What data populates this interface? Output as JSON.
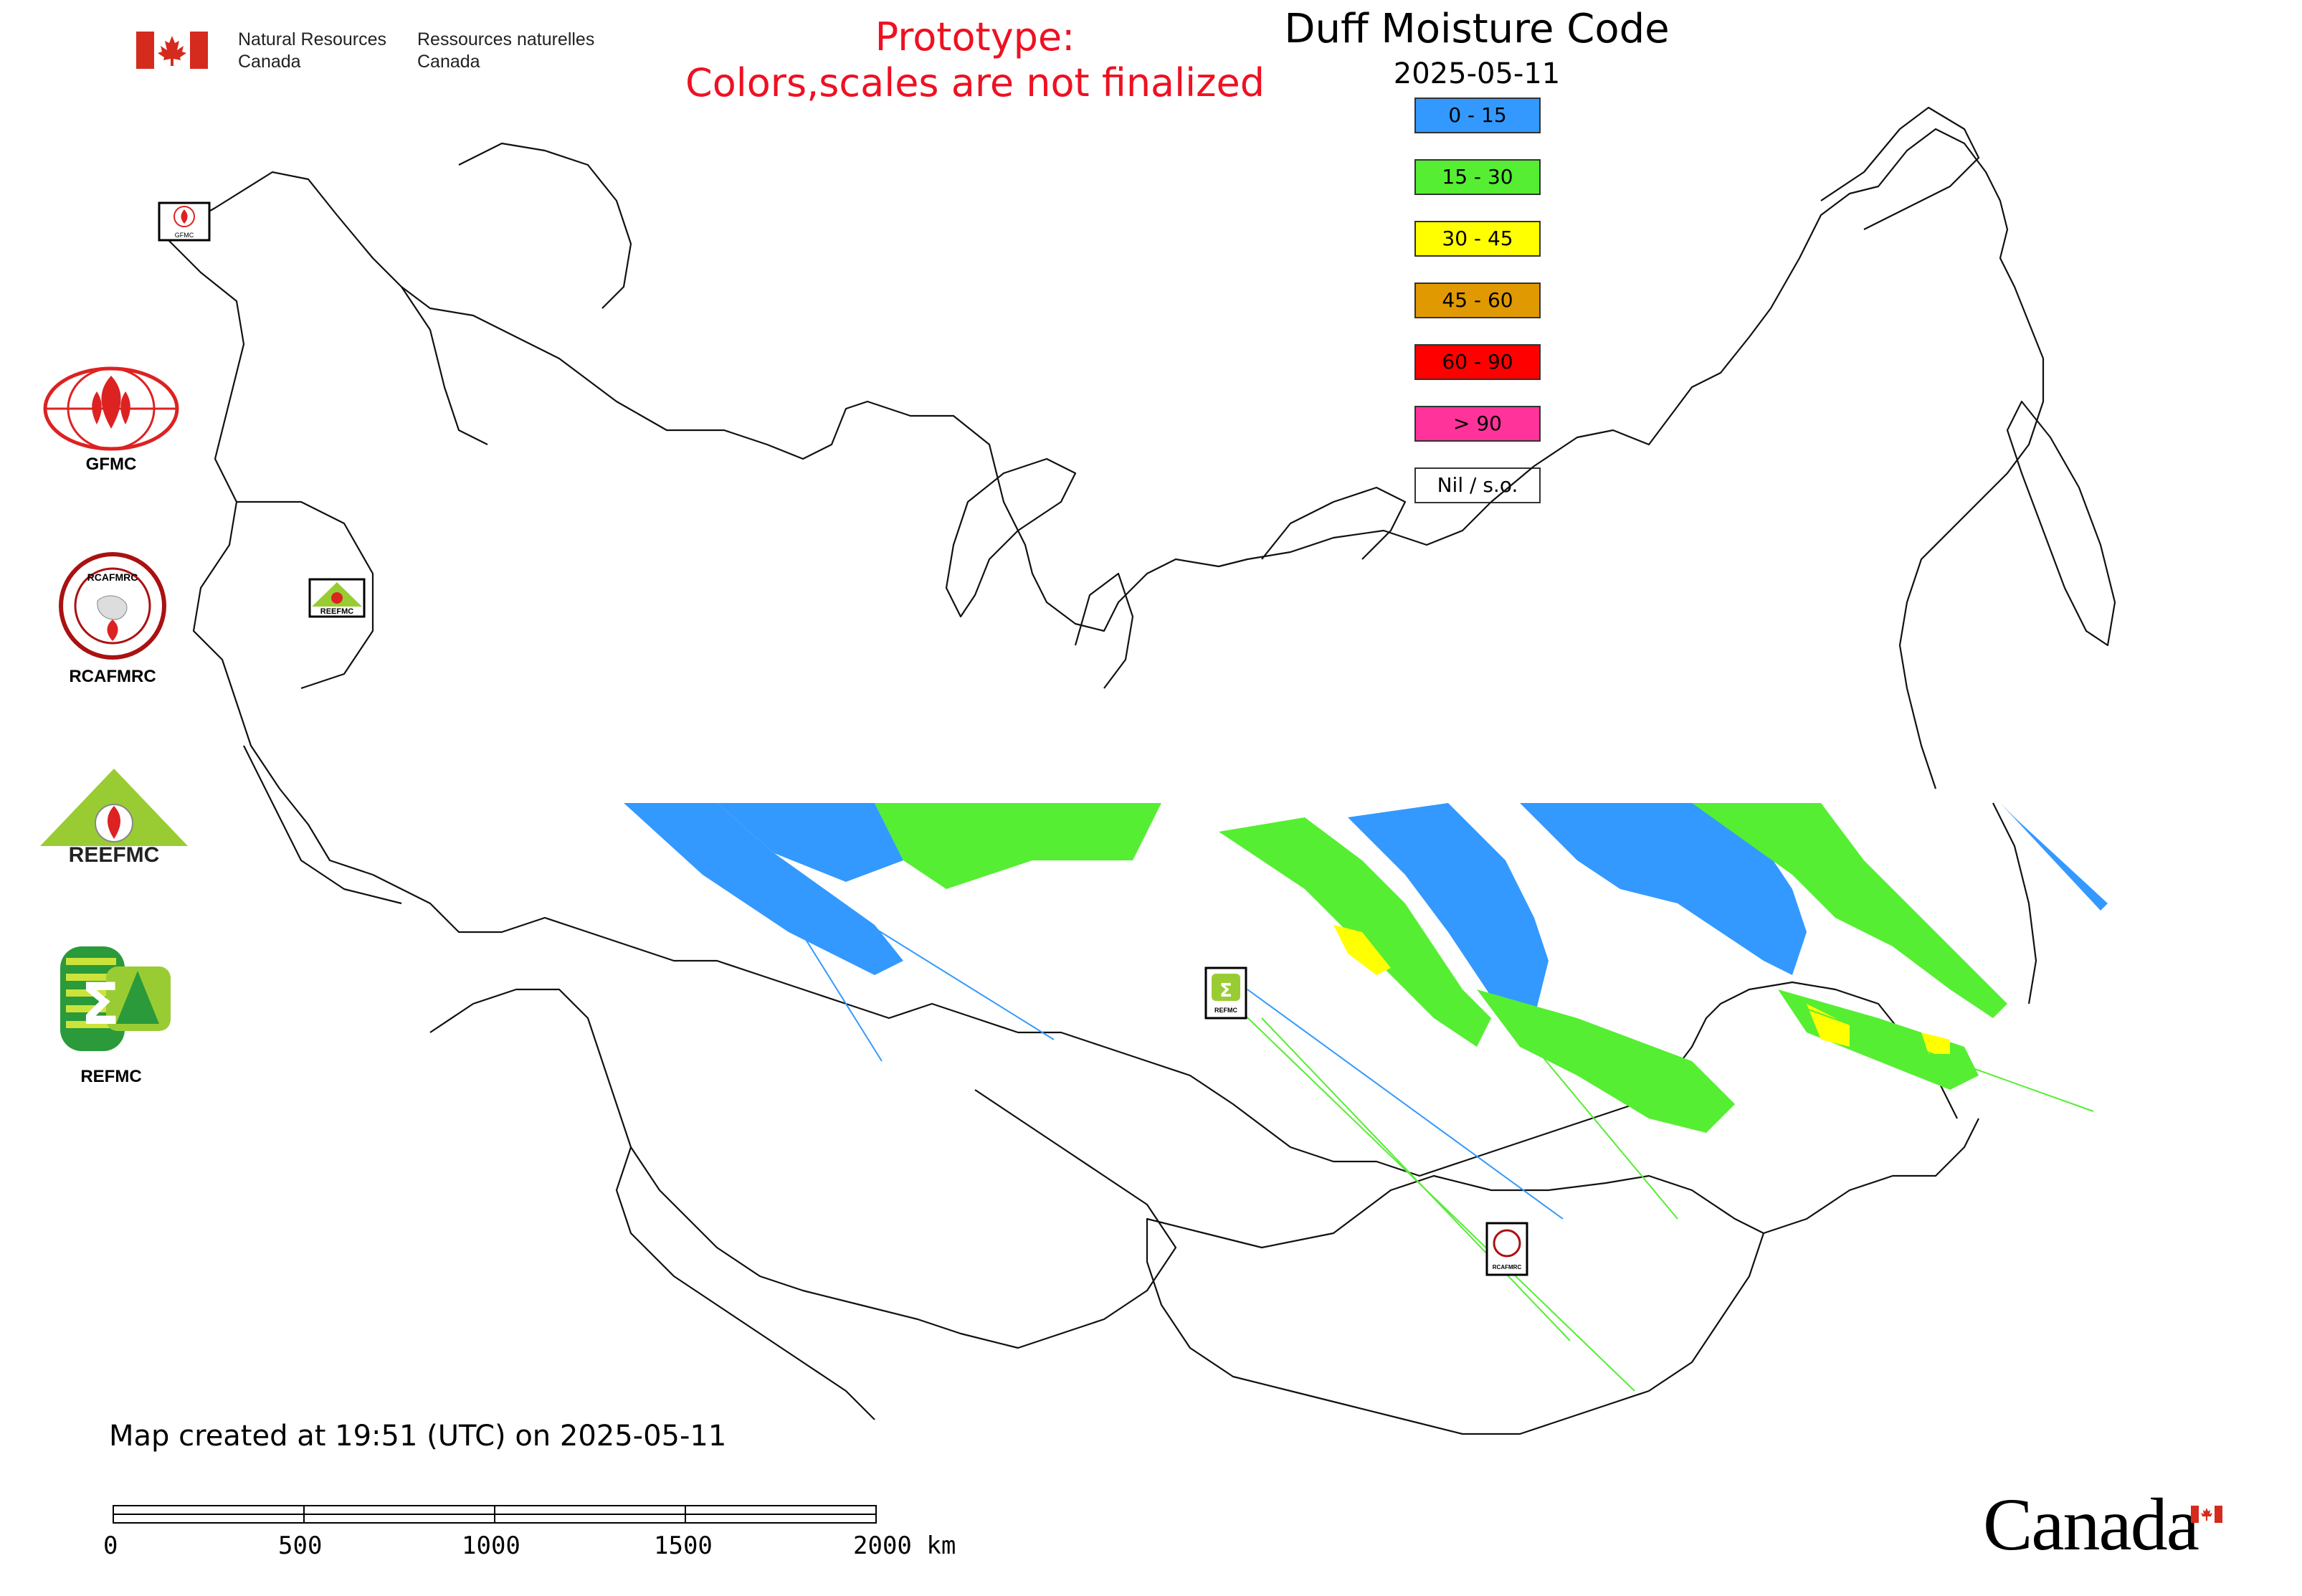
{
  "header": {
    "org_en_line1": "Natural Resources",
    "org_en_line2": "Canada",
    "org_fr_line1": "Ressources naturelles",
    "org_fr_line2": "Canada",
    "prototype_line1": "Prototype:",
    "prototype_line2": "Colors,scales are not finalized"
  },
  "map": {
    "title": "Duff Moisture Code",
    "date": "2025-05-11"
  },
  "legend": {
    "items": [
      {
        "label": "0 - 15",
        "color": "#3399ff"
      },
      {
        "label": "15 - 30",
        "color": "#55ee33"
      },
      {
        "label": "30 - 45",
        "color": "#ffff00"
      },
      {
        "label": "45 - 60",
        "color": "#e09900"
      },
      {
        "label": "60 - 90",
        "color": "#ff0000"
      },
      {
        "label": "> 90",
        "color": "#ff3399"
      },
      {
        "label": "Nil / s.o.",
        "color": "#ffffff"
      }
    ]
  },
  "logos": {
    "gfmc": "GFMC",
    "rcafmrc": "RCAFMRC",
    "reefmc": "REEFMC",
    "refmc": "REFMC",
    "reefmc_mark": "REEFMC",
    "rcafmrc_mark": "RCAFMRC",
    "gfmc_small": "GFMC",
    "refmc_small": "REFMC"
  },
  "footer": {
    "created": "Map created at 19:51 (UTC) on 2025-05-11",
    "scale_labels": [
      "0",
      "500",
      "1000",
      "1500",
      "2000 km"
    ],
    "wordmark": "Canada"
  }
}
